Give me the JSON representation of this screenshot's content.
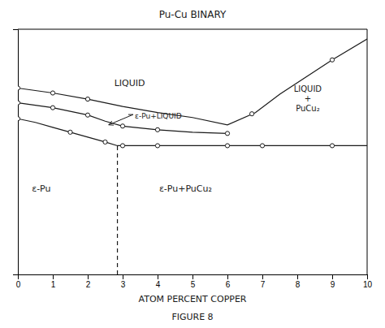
{
  "chart_data": {
    "type": "line",
    "title": "Pu-Cu BINARY",
    "xlabel": "ATOM PERCENT COPPER",
    "caption": "FIGURE 8",
    "color": "#1a1a1a",
    "xlim": [
      0,
      10
    ],
    "ylim": [
      0,
      10
    ],
    "xticks": [
      0,
      1,
      2,
      3,
      4,
      5,
      6,
      7,
      8,
      9,
      10
    ],
    "yticks": [],
    "tick_labels": "x",
    "grid": false,
    "series": [
      {
        "type": "line",
        "line_style": "solid",
        "x": [
          0,
          0.5,
          1.0,
          2.0,
          3.0,
          4.0,
          5.0,
          6.0,
          6.8,
          7.5,
          9.0,
          10.0
        ],
        "values": [
          7.6,
          7.5,
          7.4,
          7.15,
          6.85,
          6.6,
          6.4,
          6.1,
          6.6,
          7.35,
          8.75,
          9.6
        ]
      },
      {
        "type": "scatter",
        "marker": "circle",
        "x": [
          0,
          1.0,
          2.0,
          6.7,
          9.0
        ],
        "values": [
          7.6,
          7.4,
          7.15,
          6.55,
          8.75
        ]
      },
      {
        "type": "line",
        "line_style": "solid",
        "x": [
          0,
          1.0,
          2.0,
          2.5,
          3.0,
          4.0,
          5.0,
          6.0
        ],
        "values": [
          7.0,
          6.8,
          6.5,
          6.25,
          6.05,
          5.9,
          5.8,
          5.75
        ]
      },
      {
        "type": "scatter",
        "marker": "circle",
        "x": [
          0,
          1.0,
          2.0,
          3.0,
          4.0,
          6.0
        ],
        "values": [
          7.0,
          6.8,
          6.5,
          6.05,
          5.9,
          5.75
        ]
      },
      {
        "type": "line",
        "line_style": "solid",
        "x": [
          0,
          0.5,
          1.0,
          1.5,
          2.0,
          2.5,
          2.85,
          3.0,
          4.0,
          5.0,
          6.0,
          7.0,
          8.0,
          9.0,
          10.0
        ],
        "values": [
          6.35,
          6.2,
          6.0,
          5.8,
          5.6,
          5.4,
          5.25,
          5.25,
          5.25,
          5.25,
          5.25,
          5.25,
          5.25,
          5.25,
          5.25
        ]
      },
      {
        "type": "scatter",
        "marker": "circle",
        "x": [
          0,
          1.5,
          2.5,
          3.0,
          4.0,
          6.0,
          7.0,
          9.0
        ],
        "values": [
          6.35,
          5.8,
          5.4,
          5.25,
          5.25,
          5.25,
          5.25,
          5.25
        ]
      },
      {
        "type": "line",
        "line_style": "dashed",
        "x": [
          2.85,
          2.85
        ],
        "values": [
          0.0,
          5.25
        ]
      },
      {
        "type": "arrow",
        "x": [
          3.3,
          2.6
        ],
        "values": [
          6.52,
          6.1
        ]
      }
    ],
    "annotations": [
      {
        "text": "LIQUID",
        "x": 3.2,
        "y": 7.8,
        "anchor": "center"
      },
      {
        "text": "LIQUID\n+\nPuCu₂",
        "x": 8.3,
        "y": 7.2,
        "anchor": "center"
      },
      {
        "text": "ε-Pu+LIQUID",
        "x": 3.35,
        "y": 6.5,
        "anchor": "left"
      },
      {
        "text": "ε-Pu",
        "x": 0.4,
        "y": 3.5,
        "anchor": "left"
      },
      {
        "text": "ε-Pu+PuCu₂",
        "x": 4.8,
        "y": 3.5,
        "anchor": "center"
      }
    ]
  }
}
